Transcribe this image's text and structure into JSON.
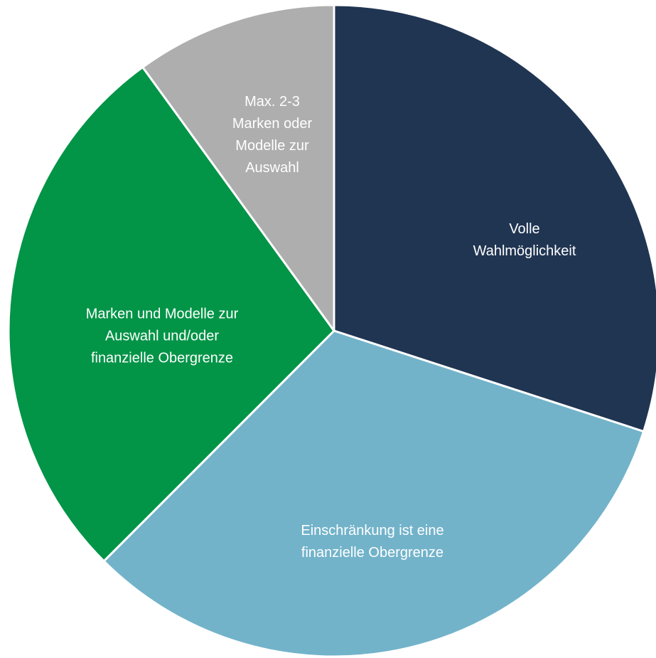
{
  "chart_data": {
    "type": "pie",
    "categories": [
      "Volle\nWahlmöglichkeit",
      "Einschränkung ist eine\nfinanzielle Obergrenze",
      "Marken und Modelle zur\nAuswahl und/oder\nfinanzielle Obergrenze",
      "Max. 2-3\nMarken oder\nModelle zur\nAuswahl"
    ],
    "values": [
      30,
      32.5,
      27.5,
      10
    ],
    "colors": [
      "#203552",
      "#72b3ca",
      "#029447",
      "#aeaeae"
    ]
  }
}
